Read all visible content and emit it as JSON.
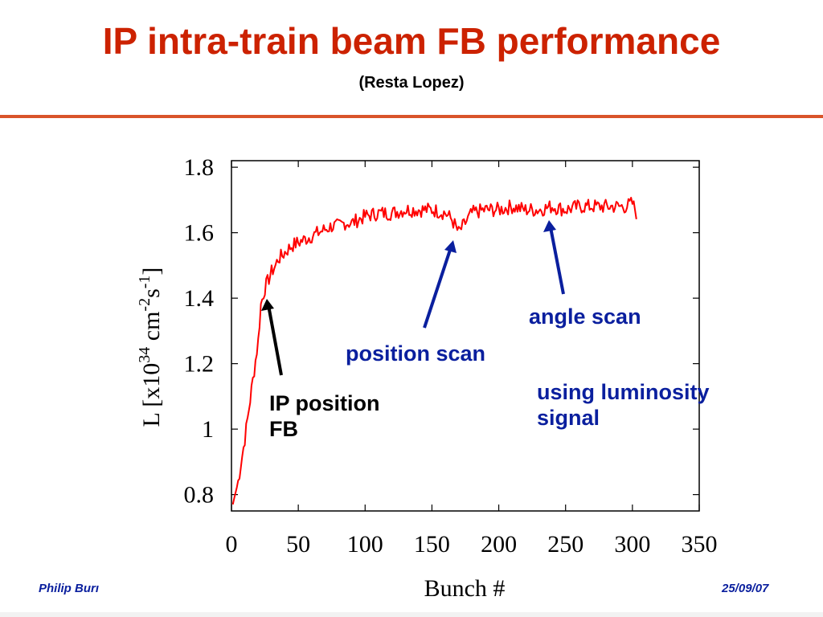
{
  "slide": {
    "title": "IP intra-train beam FB performance",
    "subtitle": "(Resta Lopez)",
    "footer_author": "Philip Burı",
    "footer_date": "25/09/07",
    "colors": {
      "title": "#cc2200",
      "rule": "#d9542a",
      "footer": "#0a1f9e",
      "annotation_blue": "#0a1f9e",
      "series": "#ff0000"
    }
  },
  "annotations": {
    "ip_position_line1": "IP position",
    "ip_position_line2": "FB",
    "position_scan": "position scan",
    "angle_scan": "angle scan",
    "luminosity_line1": "using luminosity",
    "luminosity_line2": "signal"
  },
  "chart_data": {
    "type": "line",
    "title": "",
    "xlabel": "Bunch #",
    "ylabel_parts": {
      "base": "L [x10",
      "exp1": "34",
      "mid": " cm",
      "exp2": "-2",
      "s": "s",
      "exp3": "-1",
      "end": "]"
    },
    "xlim": [
      0,
      350
    ],
    "ylim": [
      0.75,
      1.82
    ],
    "x_ticks": [
      0,
      50,
      100,
      150,
      200,
      250,
      300,
      350
    ],
    "x_tick_labels": [
      "0",
      "50",
      "100",
      "150",
      "200",
      "250",
      "300",
      "350"
    ],
    "y_ticks": [
      0.8,
      1.0,
      1.2,
      1.4,
      1.6,
      1.8
    ],
    "y_tick_labels": [
      "0.8",
      "1",
      "1.2",
      "1.4",
      "1.6",
      "1.8"
    ],
    "grid": false,
    "series": [
      {
        "x": [
          1,
          5,
          10,
          15,
          20,
          22,
          25,
          28,
          30,
          33,
          35,
          38,
          40,
          45,
          50,
          55,
          60,
          65,
          70,
          75,
          80,
          85,
          90,
          95,
          100,
          110,
          120,
          130,
          140,
          150,
          160,
          165,
          170,
          175,
          180,
          190,
          200,
          210,
          220,
          230,
          240,
          250,
          260,
          270,
          280,
          290,
          295,
          300,
          303
        ],
        "y": [
          0.77,
          0.84,
          0.97,
          1.12,
          1.27,
          1.38,
          1.43,
          1.46,
          1.48,
          1.5,
          1.52,
          1.53,
          1.54,
          1.56,
          1.57,
          1.58,
          1.59,
          1.6,
          1.61,
          1.62,
          1.62,
          1.63,
          1.63,
          1.64,
          1.65,
          1.66,
          1.66,
          1.67,
          1.67,
          1.67,
          1.66,
          1.64,
          1.6,
          1.63,
          1.66,
          1.67,
          1.67,
          1.68,
          1.67,
          1.67,
          1.68,
          1.67,
          1.68,
          1.68,
          1.68,
          1.68,
          1.68,
          1.69,
          1.66
        ]
      }
    ]
  }
}
